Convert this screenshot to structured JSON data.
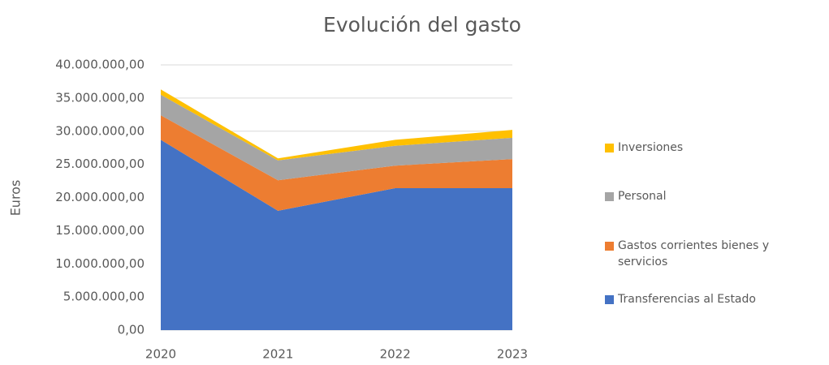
{
  "chart_data": {
    "type": "stacked_area",
    "title": "Evolución del gasto",
    "y_label": "Euros",
    "categories": [
      "2020",
      "2021",
      "2022",
      "2023"
    ],
    "series": [
      {
        "name": "Transferencias al Estado",
        "color": "#4472c4",
        "values": [
          28700000,
          18000000,
          21400000,
          21400000
        ]
      },
      {
        "name": "Gastos corrientes bienes y servicios",
        "color": "#ed7d31",
        "values": [
          3700000,
          4600000,
          3400000,
          4400000
        ]
      },
      {
        "name": "Personal",
        "color": "#a5a5a5",
        "values": [
          3100000,
          3000000,
          3000000,
          3200000
        ]
      },
      {
        "name": "Inversiones",
        "color": "#ffc000",
        "values": [
          800000,
          300000,
          900000,
          1200000
        ]
      }
    ],
    "ylim": [
      0,
      40000000
    ],
    "yticks": [
      {
        "value": 0,
        "label": "0,00"
      },
      {
        "value": 5000000,
        "label": "5.000.000,00"
      },
      {
        "value": 10000000,
        "label": "10.000.000,00"
      },
      {
        "value": 15000000,
        "label": "15.000.000,00"
      },
      {
        "value": 20000000,
        "label": "20.000.000,00"
      },
      {
        "value": 25000000,
        "label": "25.000.000,00"
      },
      {
        "value": 30000000,
        "label": "30.000.000,00"
      },
      {
        "value": 35000000,
        "label": "35.000.000,00"
      },
      {
        "value": 40000000,
        "label": "40.000.000,00"
      }
    ],
    "grid": true
  }
}
